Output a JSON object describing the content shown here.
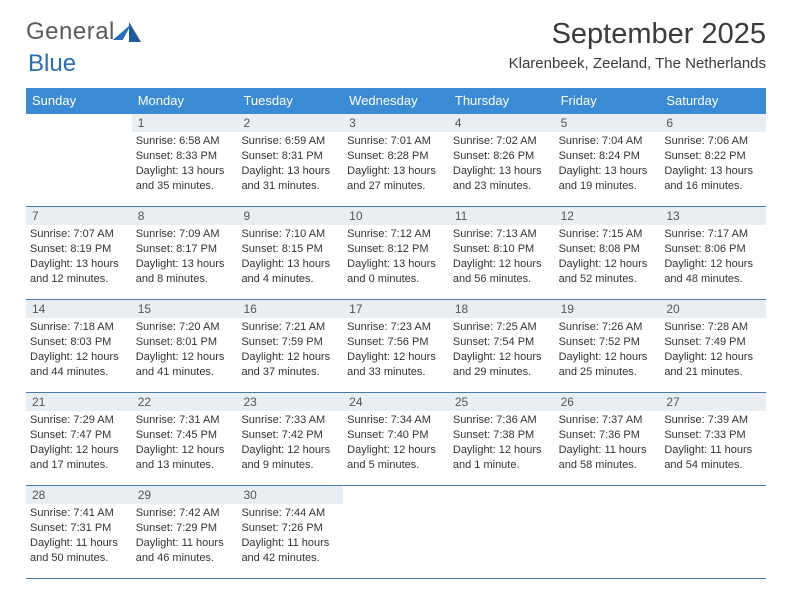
{
  "logo": {
    "text1": "General",
    "text2": "Blue"
  },
  "title": "September 2025",
  "location": "Klarenbeek, Zeeland, The Netherlands",
  "colors": {
    "header_bg": "#3b8bd4",
    "header_fg": "#ffffff",
    "daynum_bg": "#e9eef3",
    "daynum_fg": "#555555",
    "rule": "#4b7bab",
    "body_text": "#333333",
    "logo_gray": "#5a5a5a",
    "logo_blue": "#2a6db5"
  },
  "typography": {
    "title_pt": 29,
    "location_pt": 15,
    "dayhead_pt": 13,
    "daynum_pt": 12,
    "cell_pt": 11
  },
  "day_names": [
    "Sunday",
    "Monday",
    "Tuesday",
    "Wednesday",
    "Thursday",
    "Friday",
    "Saturday"
  ],
  "weeks": [
    [
      null,
      {
        "n": "1",
        "sr": "Sunrise: 6:58 AM",
        "ss": "Sunset: 8:33 PM",
        "dl": "Daylight: 13 hours and 35 minutes."
      },
      {
        "n": "2",
        "sr": "Sunrise: 6:59 AM",
        "ss": "Sunset: 8:31 PM",
        "dl": "Daylight: 13 hours and 31 minutes."
      },
      {
        "n": "3",
        "sr": "Sunrise: 7:01 AM",
        "ss": "Sunset: 8:28 PM",
        "dl": "Daylight: 13 hours and 27 minutes."
      },
      {
        "n": "4",
        "sr": "Sunrise: 7:02 AM",
        "ss": "Sunset: 8:26 PM",
        "dl": "Daylight: 13 hours and 23 minutes."
      },
      {
        "n": "5",
        "sr": "Sunrise: 7:04 AM",
        "ss": "Sunset: 8:24 PM",
        "dl": "Daylight: 13 hours and 19 minutes."
      },
      {
        "n": "6",
        "sr": "Sunrise: 7:06 AM",
        "ss": "Sunset: 8:22 PM",
        "dl": "Daylight: 13 hours and 16 minutes."
      }
    ],
    [
      {
        "n": "7",
        "sr": "Sunrise: 7:07 AM",
        "ss": "Sunset: 8:19 PM",
        "dl": "Daylight: 13 hours and 12 minutes."
      },
      {
        "n": "8",
        "sr": "Sunrise: 7:09 AM",
        "ss": "Sunset: 8:17 PM",
        "dl": "Daylight: 13 hours and 8 minutes."
      },
      {
        "n": "9",
        "sr": "Sunrise: 7:10 AM",
        "ss": "Sunset: 8:15 PM",
        "dl": "Daylight: 13 hours and 4 minutes."
      },
      {
        "n": "10",
        "sr": "Sunrise: 7:12 AM",
        "ss": "Sunset: 8:12 PM",
        "dl": "Daylight: 13 hours and 0 minutes."
      },
      {
        "n": "11",
        "sr": "Sunrise: 7:13 AM",
        "ss": "Sunset: 8:10 PM",
        "dl": "Daylight: 12 hours and 56 minutes."
      },
      {
        "n": "12",
        "sr": "Sunrise: 7:15 AM",
        "ss": "Sunset: 8:08 PM",
        "dl": "Daylight: 12 hours and 52 minutes."
      },
      {
        "n": "13",
        "sr": "Sunrise: 7:17 AM",
        "ss": "Sunset: 8:06 PM",
        "dl": "Daylight: 12 hours and 48 minutes."
      }
    ],
    [
      {
        "n": "14",
        "sr": "Sunrise: 7:18 AM",
        "ss": "Sunset: 8:03 PM",
        "dl": "Daylight: 12 hours and 44 minutes."
      },
      {
        "n": "15",
        "sr": "Sunrise: 7:20 AM",
        "ss": "Sunset: 8:01 PM",
        "dl": "Daylight: 12 hours and 41 minutes."
      },
      {
        "n": "16",
        "sr": "Sunrise: 7:21 AM",
        "ss": "Sunset: 7:59 PM",
        "dl": "Daylight: 12 hours and 37 minutes."
      },
      {
        "n": "17",
        "sr": "Sunrise: 7:23 AM",
        "ss": "Sunset: 7:56 PM",
        "dl": "Daylight: 12 hours and 33 minutes."
      },
      {
        "n": "18",
        "sr": "Sunrise: 7:25 AM",
        "ss": "Sunset: 7:54 PM",
        "dl": "Daylight: 12 hours and 29 minutes."
      },
      {
        "n": "19",
        "sr": "Sunrise: 7:26 AM",
        "ss": "Sunset: 7:52 PM",
        "dl": "Daylight: 12 hours and 25 minutes."
      },
      {
        "n": "20",
        "sr": "Sunrise: 7:28 AM",
        "ss": "Sunset: 7:49 PM",
        "dl": "Daylight: 12 hours and 21 minutes."
      }
    ],
    [
      {
        "n": "21",
        "sr": "Sunrise: 7:29 AM",
        "ss": "Sunset: 7:47 PM",
        "dl": "Daylight: 12 hours and 17 minutes."
      },
      {
        "n": "22",
        "sr": "Sunrise: 7:31 AM",
        "ss": "Sunset: 7:45 PM",
        "dl": "Daylight: 12 hours and 13 minutes."
      },
      {
        "n": "23",
        "sr": "Sunrise: 7:33 AM",
        "ss": "Sunset: 7:42 PM",
        "dl": "Daylight: 12 hours and 9 minutes."
      },
      {
        "n": "24",
        "sr": "Sunrise: 7:34 AM",
        "ss": "Sunset: 7:40 PM",
        "dl": "Daylight: 12 hours and 5 minutes."
      },
      {
        "n": "25",
        "sr": "Sunrise: 7:36 AM",
        "ss": "Sunset: 7:38 PM",
        "dl": "Daylight: 12 hours and 1 minute."
      },
      {
        "n": "26",
        "sr": "Sunrise: 7:37 AM",
        "ss": "Sunset: 7:36 PM",
        "dl": "Daylight: 11 hours and 58 minutes."
      },
      {
        "n": "27",
        "sr": "Sunrise: 7:39 AM",
        "ss": "Sunset: 7:33 PM",
        "dl": "Daylight: 11 hours and 54 minutes."
      }
    ],
    [
      {
        "n": "28",
        "sr": "Sunrise: 7:41 AM",
        "ss": "Sunset: 7:31 PM",
        "dl": "Daylight: 11 hours and 50 minutes."
      },
      {
        "n": "29",
        "sr": "Sunrise: 7:42 AM",
        "ss": "Sunset: 7:29 PM",
        "dl": "Daylight: 11 hours and 46 minutes."
      },
      {
        "n": "30",
        "sr": "Sunrise: 7:44 AM",
        "ss": "Sunset: 7:26 PM",
        "dl": "Daylight: 11 hours and 42 minutes."
      },
      null,
      null,
      null,
      null
    ]
  ]
}
